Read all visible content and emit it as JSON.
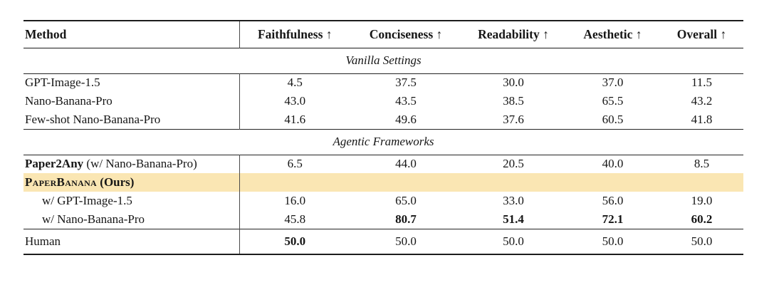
{
  "page": {
    "background_color": "#ffffff"
  },
  "table": {
    "highlight_color": "#FAE6B3",
    "columns": [
      {
        "label": "Method"
      },
      {
        "label": "Faithfulness ↑"
      },
      {
        "label": "Conciseness ↑"
      },
      {
        "label": "Readability ↑"
      },
      {
        "label": "Aesthetic ↑"
      },
      {
        "label": "Overall ↑"
      }
    ],
    "sections": [
      {
        "title": "Vanilla Settings",
        "rows": [
          {
            "method": {
              "name": "GPT-Image-1.5"
            },
            "values": [
              "4.5",
              "37.5",
              "30.0",
              "37.0",
              "11.5"
            ]
          },
          {
            "method": {
              "name": "Nano-Banana-Pro"
            },
            "values": [
              "43.0",
              "43.5",
              "38.5",
              "65.5",
              "43.2"
            ]
          },
          {
            "method": {
              "name": "Few-shot Nano-Banana-Pro"
            },
            "values": [
              "41.6",
              "49.6",
              "37.6",
              "60.5",
              "41.8"
            ]
          }
        ]
      },
      {
        "title": "Agentic Frameworks",
        "rows": [
          {
            "method": {
              "name": "Paper2Any",
              "suffix": " (w/ Nano-Banana-Pro)",
              "bold_name": true
            },
            "values": [
              "6.5",
              "44.0",
              "20.5",
              "40.0",
              "8.5"
            ]
          },
          {
            "method": {
              "name": "PaperBanana",
              "suffix": " (Ours)",
              "bold_name": true,
              "bold_suffix": true,
              "smallcaps": true
            },
            "highlight": true,
            "values": [
              "",
              "",
              "",
              "",
              ""
            ]
          },
          {
            "method": {
              "name": "w/ GPT-Image-1.5",
              "indent": true
            },
            "values": [
              "16.0",
              "65.0",
              "33.0",
              "56.0",
              "19.0"
            ]
          },
          {
            "method": {
              "name": "w/ Nano-Banana-Pro",
              "indent": true
            },
            "values": [
              "45.8",
              "80.7",
              "51.4",
              "72.1",
              "60.2"
            ],
            "bold_values": [
              false,
              true,
              true,
              true,
              true
            ]
          }
        ]
      },
      {
        "rows": [
          {
            "method": {
              "name": "Human"
            },
            "values": [
              "50.0",
              "50.0",
              "50.0",
              "50.0",
              "50.0"
            ],
            "bold_values": [
              true,
              false,
              false,
              false,
              false
            ]
          }
        ]
      }
    ]
  }
}
